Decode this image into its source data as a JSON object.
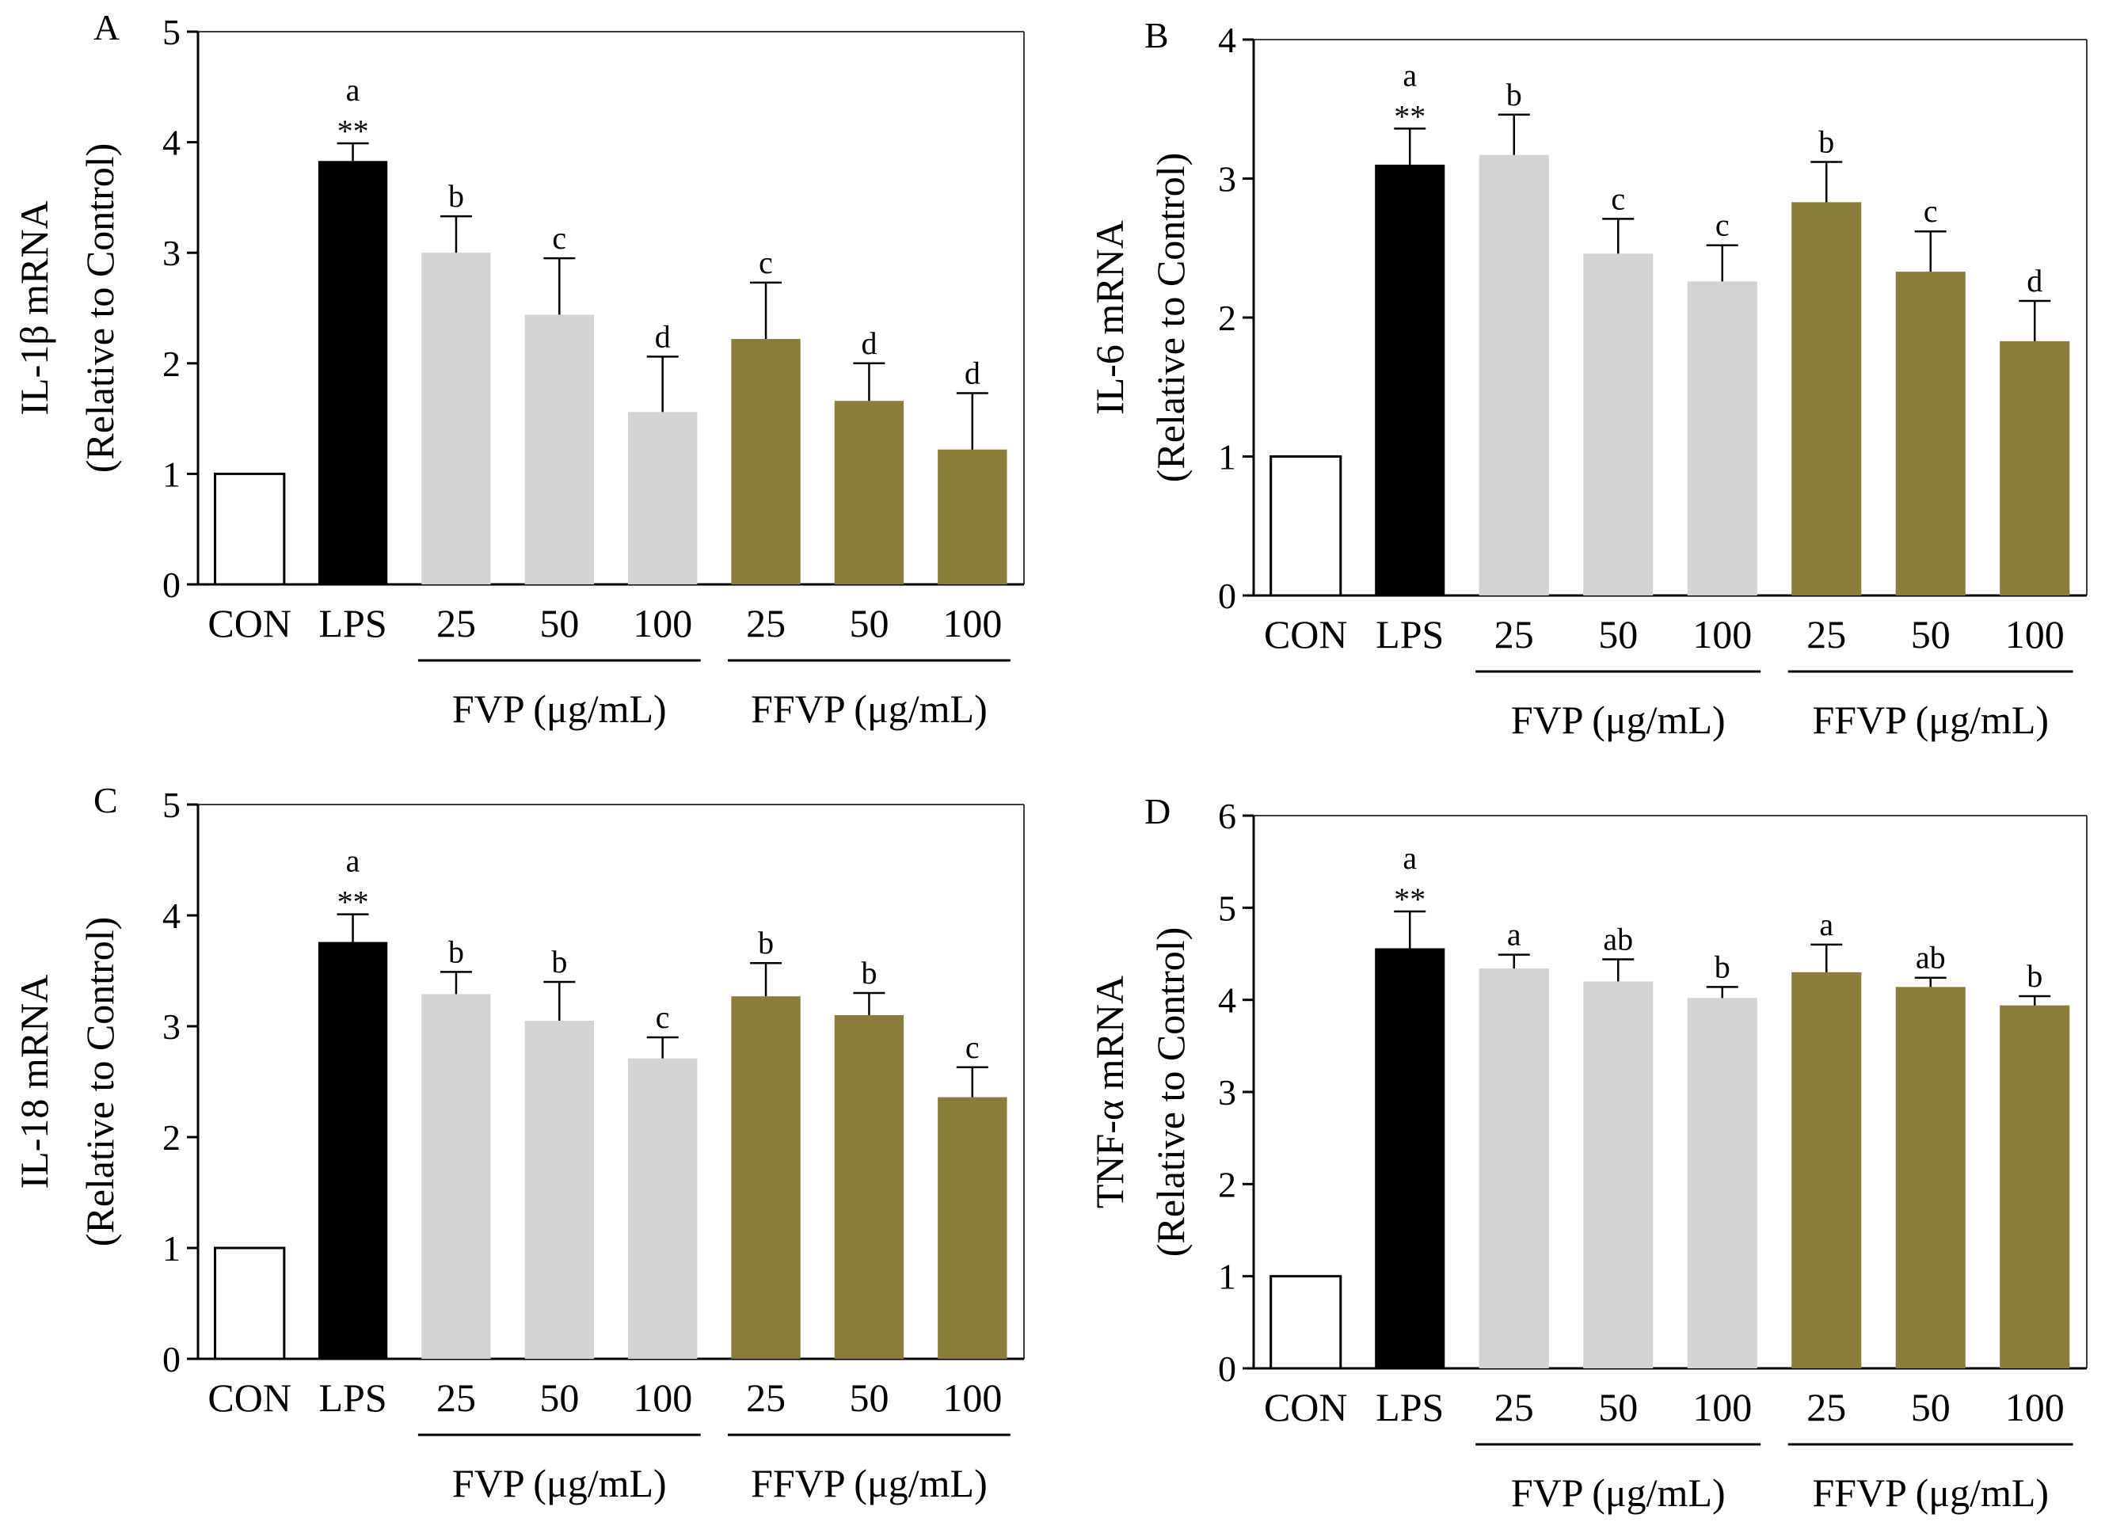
{
  "chart_data": [
    {
      "type": "bar",
      "panel": "A",
      "ylabel": "IL-1β mRNA",
      "ylabel2": "(Relative to Control)",
      "ylim": [
        0,
        5
      ],
      "yticks": [
        "0",
        "1",
        "2",
        "3",
        "4",
        "5"
      ],
      "categories": [
        "CON",
        "LPS",
        "25",
        "50",
        "100",
        "25",
        "50",
        "100"
      ],
      "groups": [
        "FVP (μg/mL)",
        "FFVP (μg/mL)"
      ],
      "values": [
        1.0,
        3.83,
        3.0,
        2.44,
        1.56,
        2.22,
        1.66,
        1.22
      ],
      "errors": [
        0,
        0.16,
        0.33,
        0.51,
        0.5,
        0.51,
        0.34,
        0.51
      ],
      "letters": [
        "",
        "a",
        "b",
        "c",
        "d",
        "c",
        "d",
        "d"
      ],
      "stars": [
        "",
        "**",
        "",
        "",
        "",
        "",
        "",
        ""
      ]
    },
    {
      "type": "bar",
      "panel": "B",
      "ylabel": "IL-6 mRNA",
      "ylabel2": "(Relative to Control)",
      "ylim": [
        0,
        4
      ],
      "yticks": [
        "0",
        "1",
        "2",
        "3",
        "4"
      ],
      "categories": [
        "CON",
        "LPS",
        "25",
        "50",
        "100",
        "25",
        "50",
        "100"
      ],
      "groups": [
        "FVP (μg/mL)",
        "FFVP (μg/mL)"
      ],
      "values": [
        1.0,
        3.1,
        3.17,
        2.46,
        2.26,
        2.83,
        2.33,
        1.83
      ],
      "errors": [
        0,
        0.26,
        0.29,
        0.25,
        0.26,
        0.29,
        0.29,
        0.29
      ],
      "letters": [
        "",
        "a",
        "b",
        "c",
        "c",
        "b",
        "c",
        "d"
      ],
      "stars": [
        "",
        "**",
        "",
        "",
        "",
        "",
        "",
        ""
      ]
    },
    {
      "type": "bar",
      "panel": "C",
      "ylabel": "IL-18 mRNA",
      "ylabel2": "(Relative to Control)",
      "ylim": [
        0,
        5
      ],
      "yticks": [
        "0",
        "1",
        "2",
        "3",
        "4",
        "5"
      ],
      "categories": [
        "CON",
        "LPS",
        "25",
        "50",
        "100",
        "25",
        "50",
        "100"
      ],
      "groups": [
        "FVP (μg/mL)",
        "FFVP (μg/mL)"
      ],
      "values": [
        1.0,
        3.76,
        3.29,
        3.05,
        2.71,
        3.27,
        3.1,
        2.36
      ],
      "errors": [
        0,
        0.25,
        0.2,
        0.35,
        0.19,
        0.3,
        0.2,
        0.27
      ],
      "letters": [
        "",
        "a",
        "b",
        "b",
        "c",
        "b",
        "b",
        "c"
      ],
      "stars": [
        "",
        "**",
        "",
        "",
        "",
        "",
        "",
        ""
      ]
    },
    {
      "type": "bar",
      "panel": "D",
      "ylabel": "TNF-α mRNA",
      "ylabel2": "(Relative to Control)",
      "ylim": [
        0,
        6
      ],
      "yticks": [
        "0",
        "1",
        "2",
        "3",
        "4",
        "5",
        "6"
      ],
      "categories": [
        "CON",
        "LPS",
        "25",
        "50",
        "100",
        "25",
        "50",
        "100"
      ],
      "groups": [
        "FVP (μg/mL)",
        "FFVP (μg/mL)"
      ],
      "values": [
        1.0,
        4.56,
        4.34,
        4.2,
        4.02,
        4.3,
        4.14,
        3.94
      ],
      "errors": [
        0,
        0.4,
        0.15,
        0.24,
        0.12,
        0.3,
        0.1,
        0.1
      ],
      "letters": [
        "",
        "a",
        "a",
        "ab",
        "b",
        "a",
        "ab",
        "b"
      ],
      "stars": [
        "",
        "**",
        "",
        "",
        "",
        "",
        "",
        ""
      ]
    }
  ],
  "colors": {
    "con_fill": "#ffffff",
    "lps_fill": "#000000",
    "fvp_fill": "#d4d4d4",
    "ffvp_fill": "#8a7c3a",
    "stroke": "#000000"
  }
}
